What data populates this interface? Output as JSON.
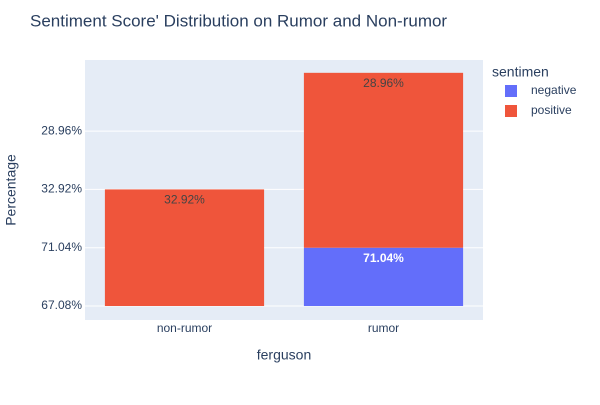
{
  "chart_data": {
    "type": "bar",
    "stacked": true,
    "title": "Sentiment Score' Distribution on Rumor and Non-rumor",
    "x_label": "ferguson",
    "y_label": "Percentage",
    "legend_title": "sentimen",
    "categories": [
      "non-rumor",
      "rumor"
    ],
    "series": [
      {
        "name": "negative",
        "color": "#636efa",
        "values": [
          0,
          1
        ],
        "value_labels": [
          null,
          "71.04%"
        ]
      },
      {
        "name": "positive",
        "color": "#ef553b",
        "values": [
          2,
          3
        ],
        "value_labels": [
          "32.92%",
          "28.96%"
        ]
      }
    ],
    "ylim": [
      -0.24,
      4.22
    ],
    "yticks": [
      {
        "value": 0,
        "label": "67.08%"
      },
      {
        "value": 1,
        "label": "71.04%"
      },
      {
        "value": 2,
        "label": "32.92%"
      },
      {
        "value": 3,
        "label": "28.96%"
      }
    ],
    "grid": true
  }
}
